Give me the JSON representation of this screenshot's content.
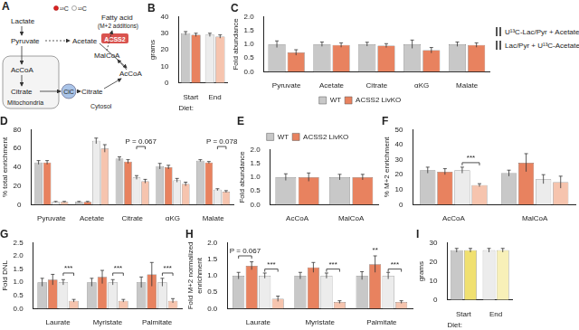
{
  "diagram": {
    "title": "A",
    "labels": {
      "lactate": "Lactate",
      "pyruvate": "Pyruvate",
      "acetate": "Acetate",
      "fatty_acid": "Fatty acid",
      "m2": "(M+2 additions)",
      "accoa_mito": "AcCoA",
      "citrate_mito": "Citrate",
      "cic": "CiC",
      "citrate_cyto": "Citrate",
      "accoa_cyto": "AcCoA",
      "malcoa": "MalCoA",
      "acss2": "ACSS2",
      "mitochondria": "Mitochondria",
      "cytosol": "Cytosol",
      "c13": "¹³C",
      "c12": "¹²C"
    }
  },
  "legend_panel": {
    "rows": [
      {
        "title": "U¹³C-Lac/Pyr + Acetate",
        "colors": [
          "#c8c8c8",
          "#e8825f"
        ]
      },
      {
        "title": "Lac/Pyr + U¹³C-Acetate",
        "colors": [
          "#ececec",
          "#f6c4ae"
        ]
      }
    ]
  },
  "chart_data": [
    {
      "type": "bar",
      "title": "B",
      "y_label": "grams",
      "x_label": "Diet:",
      "categories": [
        "Start",
        "End"
      ],
      "series": [
        {
          "colors": [
            "#c8c8c8",
            "#ececec"
          ],
          "values": [
            30,
            29
          ],
          "errors": [
            1,
            1
          ]
        },
        {
          "colors": [
            "#e8825f",
            "#f6c4ae"
          ],
          "values": [
            29,
            28
          ],
          "errors": [
            1,
            1
          ]
        }
      ],
      "ylim": [
        0,
        40
      ],
      "yticks": [
        0,
        10,
        20,
        30,
        40
      ],
      "grid": false
    },
    {
      "type": "bar",
      "title": "C",
      "y_label": "Fold abundance",
      "categories": [
        "Pyruvate",
        "Acetate",
        "Citrate",
        "αKG",
        "Malate"
      ],
      "series": [
        {
          "name": "WT",
          "color": "#c8c8c8",
          "values": [
            1.0,
            1.0,
            1.0,
            1.0,
            1.0
          ],
          "errors": [
            0.12,
            0.08,
            0.07,
            0.15,
            0.08
          ]
        },
        {
          "name": "ACSS2 LivKO",
          "color": "#e8825f",
          "values": [
            0.7,
            0.97,
            0.95,
            0.78,
            0.97
          ],
          "errors": [
            0.1,
            0.08,
            0.07,
            0.1,
            0.08
          ]
        }
      ],
      "ylim": [
        0,
        2.0
      ],
      "yticks": [
        {
          "value": 0,
          "label": "0.0"
        },
        0.5,
        {
          "value": 1,
          "label": "1.0"
        },
        1.5,
        {
          "value": 2,
          "label": "2.0"
        }
      ],
      "grid": false,
      "legend": "bottom"
    },
    {
      "type": "bar",
      "title": "D",
      "y_label": "% total enrichment",
      "categories": [
        "Pyruvate",
        "Acetate",
        "Citrate",
        "αKG",
        "Malate"
      ],
      "series": [
        {
          "color": "#c8c8c8",
          "values": [
            45,
            3,
            49,
            41,
            47
          ],
          "errors": [
            2,
            0.5,
            2,
            3,
            1
          ]
        },
        {
          "color": "#e8825f",
          "values": [
            45,
            3,
            46,
            40,
            45
          ],
          "errors": [
            2,
            0.5,
            2,
            2,
            1
          ]
        },
        {
          "color": "#ececec",
          "values": [
            3,
            68,
            29,
            26,
            16
          ],
          "errors": [
            0.5,
            3,
            2,
            2,
            1
          ]
        },
        {
          "color": "#f6c4ae",
          "values": [
            3,
            60,
            25,
            22,
            14
          ],
          "errors": [
            0.5,
            4,
            2,
            2,
            1
          ]
        }
      ],
      "annotations": [
        {
          "text": "P = 0.067",
          "category": 2,
          "value": 62,
          "series": [
            2,
            3
          ]
        },
        {
          "text": "P = 0.078",
          "category": 4,
          "value": 62,
          "series": [
            2,
            3
          ]
        }
      ],
      "ylim": [
        0,
        80
      ],
      "yticks": [
        0,
        20,
        40,
        60,
        80
      ],
      "grid": false
    },
    {
      "type": "bar",
      "title": "E",
      "y_label": "Fold abundance",
      "categories": [
        "AcCoA",
        "MalCoA"
      ],
      "series": [
        {
          "name": "WT",
          "color": "#c8c8c8",
          "values": [
            1.0,
            1.0
          ],
          "errors": [
            0.12,
            0.1
          ]
        },
        {
          "name": "ACSS2 LivKO",
          "color": "#e8825f",
          "values": [
            1.0,
            1.0
          ],
          "errors": [
            0.15,
            0.1
          ]
        }
      ],
      "ylim": [
        0,
        2.0
      ],
      "yticks": [
        {
          "value": 0,
          "label": "0.0"
        },
        0.5,
        {
          "value": 1,
          "label": "1.0"
        },
        1.5,
        {
          "value": 2,
          "label": "2.0"
        }
      ],
      "grid": false,
      "legend": "top"
    },
    {
      "type": "bar",
      "title": "F",
      "y_label": "% M+2 enrichment",
      "categories": [
        "AcCoA",
        "MalCoA"
      ],
      "series": [
        {
          "color": "#c8c8c8",
          "values": [
            23,
            21
          ],
          "errors": [
            2,
            2
          ]
        },
        {
          "color": "#e8825f",
          "values": [
            22,
            28
          ],
          "errors": [
            2,
            6
          ]
        },
        {
          "color": "#ececec",
          "values": [
            23,
            17
          ],
          "errors": [
            2,
            3
          ]
        },
        {
          "color": "#f6c4ae",
          "values": [
            13,
            15
          ],
          "errors": [
            1,
            4
          ]
        }
      ],
      "annotations": [
        {
          "text": "***",
          "category": 0,
          "value": 28,
          "series": [
            2,
            3
          ]
        }
      ],
      "ylim": [
        0,
        50
      ],
      "yticks": [
        0,
        10,
        20,
        30,
        40,
        50
      ],
      "grid": false
    },
    {
      "type": "bar",
      "title": "G",
      "y_label": "Fold DNL",
      "categories": [
        "Laurate",
        "Myristate",
        "Palmitate"
      ],
      "series": [
        {
          "color": "#c8c8c8",
          "values": [
            1.0,
            1.0,
            1.0
          ],
          "errors": [
            0.15,
            0.15,
            0.2
          ]
        },
        {
          "color": "#e8825f",
          "values": [
            1.1,
            1.2,
            1.3
          ],
          "errors": [
            0.2,
            0.25,
            0.45
          ]
        },
        {
          "color": "#ececec",
          "values": [
            1.0,
            1.0,
            1.0
          ],
          "errors": [
            0.1,
            0.1,
            0.15
          ]
        },
        {
          "color": "#f6c4ae",
          "values": [
            0.3,
            0.3,
            0.3
          ],
          "errors": [
            0.05,
            0.05,
            0.08
          ]
        }
      ],
      "annotations": [
        {
          "text": "***",
          "category": 0,
          "value": 1.35,
          "series": [
            2,
            3
          ]
        },
        {
          "text": "***",
          "category": 1,
          "value": 1.35,
          "series": [
            2,
            3
          ]
        },
        {
          "text": "***",
          "category": 2,
          "value": 1.35,
          "series": [
            2,
            3
          ]
        }
      ],
      "ylim": [
        0,
        2.5
      ],
      "yticks": [
        {
          "value": 0,
          "label": "0.0"
        },
        0.5,
        {
          "value": 1,
          "label": "1.0"
        },
        1.5,
        {
          "value": 2,
          "label": "2.0"
        },
        2.5
      ],
      "grid": false
    },
    {
      "type": "bar",
      "title": "H",
      "y_label": "Fold M+2 normalized enrichment",
      "categories": [
        "Laurate",
        "Myristate",
        "Palmitate"
      ],
      "series": [
        {
          "color": "#c8c8c8",
          "values": [
            1.0,
            1.0,
            1.0
          ],
          "errors": [
            0.1,
            0.1,
            0.12
          ]
        },
        {
          "color": "#e8825f",
          "values": [
            1.3,
            1.25,
            1.35
          ],
          "errors": [
            0.12,
            0.15,
            0.25
          ]
        },
        {
          "color": "#ececec",
          "values": [
            1.0,
            1.0,
            1.0
          ],
          "errors": [
            0.08,
            0.08,
            0.1
          ]
        },
        {
          "color": "#f6c4ae",
          "values": [
            0.3,
            0.2,
            0.2
          ],
          "errors": [
            0.08,
            0.04,
            0.04
          ]
        }
      ],
      "annotations": [
        {
          "text": "P = 0.067",
          "category": 0,
          "value": 1.6,
          "series": [
            0,
            1
          ]
        },
        {
          "text": "***",
          "category": 0,
          "value": 1.2,
          "series": [
            2,
            3
          ]
        },
        {
          "text": "***",
          "category": 1,
          "value": 1.2,
          "series": [
            2,
            3
          ]
        },
        {
          "text": "***",
          "category": 2,
          "value": 1.2,
          "series": [
            2,
            3
          ]
        },
        {
          "text": "**",
          "category": 2,
          "value": 1.65,
          "series": [
            1
          ]
        }
      ],
      "ylim": [
        0,
        2.0
      ],
      "yticks": [
        {
          "value": 0,
          "label": "0.0"
        },
        0.5,
        {
          "value": 1,
          "label": "1.0"
        },
        1.5,
        {
          "value": 2,
          "label": "2.0"
        }
      ],
      "grid": false
    },
    {
      "type": "bar",
      "title": "I",
      "y_label": "grams",
      "x_label": "Diet:",
      "categories": [
        "Start",
        "End"
      ],
      "series": [
        {
          "colors": [
            "#c8c8c8",
            "#ececec"
          ],
          "values": [
            26,
            26
          ],
          "errors": [
            1,
            1
          ]
        },
        {
          "colors": [
            "#f0e070",
            "#f8f0b8"
          ],
          "values": [
            26,
            26
          ],
          "errors": [
            1,
            1
          ]
        }
      ],
      "ylim": [
        0,
        30
      ],
      "yticks": [
        0,
        10,
        20,
        30
      ],
      "grid": false
    }
  ]
}
